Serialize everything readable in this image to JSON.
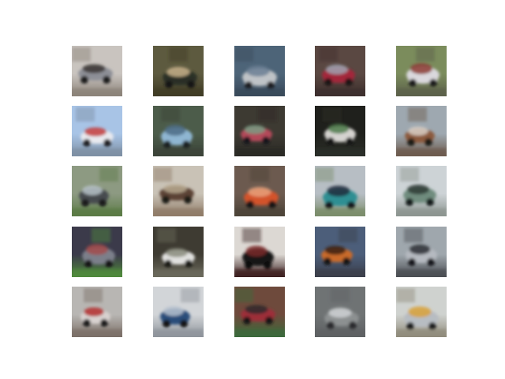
{
  "figure": {
    "rows": 5,
    "cols": 5,
    "subject": "car"
  },
  "tiles": [
    {
      "sky": "#c9c4bf",
      "ground": "#8a8178",
      "car": "#8d8f96",
      "accent": "#3a3634",
      "wheels": "#1f1d1c"
    },
    {
      "sky": "#5d5a3f",
      "ground": "#3e3a25",
      "car": "#2c3027",
      "accent": "#c9b38c",
      "wheels": "#151412"
    },
    {
      "sky": "#4d6478",
      "ground": "#39495a",
      "car": "#bfc3c6",
      "accent": "#6b7f94",
      "wheels": "#1c1f24"
    },
    {
      "sky": "#5a4842",
      "ground": "#3d2f2c",
      "car": "#a3263b",
      "accent": "#9fa3b2",
      "wheels": "#1b1515"
    },
    {
      "sky": "#7b8c5c",
      "ground": "#5b5f4a",
      "car": "#d9d8dd",
      "accent": "#8c3b35",
      "wheels": "#1d1c1c"
    },
    {
      "sky": "#a8c4e6",
      "ground": "#7d8fa3",
      "car": "#e8e9ee",
      "accent": "#c23b3b",
      "wheels": "#202226"
    },
    {
      "sky": "#4c5c4a",
      "ground": "#3a4238",
      "car": "#8fb6d2",
      "accent": "#4d6c86",
      "wheels": "#1b2024"
    },
    {
      "sky": "#3d3a32",
      "ground": "#2a2925",
      "car": "#b3485a",
      "accent": "#7a9c84",
      "wheels": "#17161a"
    },
    {
      "sky": "#1f201c",
      "ground": "#2b2d27",
      "car": "#d5d3cf",
      "accent": "#4e7a4b",
      "wheels": "#121212"
    },
    {
      "sky": "#9ea8b0",
      "ground": "#6c5a4c",
      "car": "#8c5a3c",
      "accent": "#d8cfc6",
      "wheels": "#1c1a18"
    },
    {
      "sky": "#8d9a82",
      "ground": "#5a7a45",
      "car": "#474b4f",
      "accent": "#b7c2c8",
      "wheels": "#1a1b1d"
    },
    {
      "sky": "#c9c2b6",
      "ground": "#8e7a66",
      "car": "#5b4334",
      "accent": "#b7a88f",
      "wheels": "#1d1a17"
    },
    {
      "sky": "#6c5a4f",
      "ground": "#4b4337",
      "car": "#d3532c",
      "accent": "#e6a07a",
      "wheels": "#191513"
    },
    {
      "sky": "#b7bec4",
      "ground": "#7a8c6a",
      "car": "#2f8f93",
      "accent": "#1e2c3c",
      "wheels": "#17191c"
    },
    {
      "sky": "#cdd3d6",
      "ground": "#8b948f",
      "car": "#6f8c7e",
      "accent": "#2f3b36",
      "wheels": "#191b1a"
    },
    {
      "sky": "#3b3a4a",
      "ground": "#4f8a3a",
      "car": "#7c7f8a",
      "accent": "#a24a4a",
      "wheels": "#181819"
    },
    {
      "sky": "#3e3b32",
      "ground": "#6b6a5c",
      "car": "#e1e1df",
      "accent": "#8a8c7e",
      "wheels": "#1a1a19"
    },
    {
      "sky": "#dcd8d3",
      "ground": "#3a1f1f",
      "car": "#161616",
      "accent": "#7a2b2b",
      "wheels": "#0f0f0f"
    },
    {
      "sky": "#4c5e7a",
      "ground": "#3b3e4a",
      "car": "#c96a2c",
      "accent": "#3a2012",
      "wheels": "#161412"
    },
    {
      "sky": "#9fa7ad",
      "ground": "#4a4d52",
      "car": "#b5b9c0",
      "accent": "#2b2e33",
      "wheels": "#17181a"
    },
    {
      "sky": "#b8b6b3",
      "ground": "#7a6e66",
      "car": "#d8d2cf",
      "accent": "#b32c2c",
      "wheels": "#1c1a1a"
    },
    {
      "sky": "#d2d5d8",
      "ground": "#8d939a",
      "car": "#2a4e7a",
      "accent": "#b7c2cf",
      "wheels": "#121417"
    },
    {
      "sky": "#6e4a3c",
      "ground": "#3a6a3a",
      "car": "#9d2f3a",
      "accent": "#2c2c2c",
      "wheels": "#141414"
    },
    {
      "sky": "#6f7374",
      "ground": "#5e6163",
      "car": "#8c9091",
      "accent": "#cfd2d3",
      "wheels": "#2a2c2d"
    },
    {
      "sky": "#cfd2cf",
      "ground": "#8f8a7a",
      "car": "#b7bcc2",
      "accent": "#d9a23a",
      "wheels": "#1b1c1e"
    }
  ]
}
